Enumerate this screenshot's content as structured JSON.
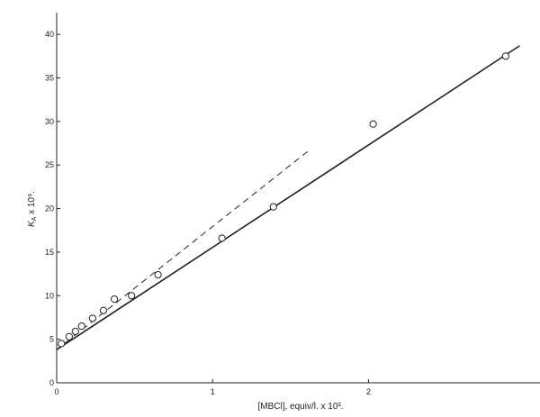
{
  "chart_data": {
    "type": "scatter",
    "x_tick_labels": [
      "0",
      "1",
      "2"
    ],
    "y_tick_labels": [
      "0",
      "5",
      "10",
      "15",
      "20",
      "25",
      "30",
      "35",
      "40"
    ],
    "x_ticks": [
      0,
      1,
      2
    ],
    "y_ticks": [
      0,
      5,
      10,
      15,
      20,
      25,
      30,
      35,
      40
    ],
    "xlim": [
      0,
      3.1
    ],
    "ylim": [
      0,
      42.5
    ],
    "xlabel": "[MBCl], equiv/l. x 10³.",
    "ylabel": "K_A x 10⁹.",
    "ylabel_main": "K",
    "ylabel_sub": "A",
    "ylabel_rest": " x 10⁹.",
    "grid": false,
    "points": [
      {
        "x": 0.03,
        "y": 4.5
      },
      {
        "x": 0.08,
        "y": 5.3
      },
      {
        "x": 0.12,
        "y": 5.9
      },
      {
        "x": 0.16,
        "y": 6.5
      },
      {
        "x": 0.23,
        "y": 7.4
      },
      {
        "x": 0.3,
        "y": 8.3
      },
      {
        "x": 0.37,
        "y": 9.6
      },
      {
        "x": 0.48,
        "y": 10.0
      },
      {
        "x": 0.65,
        "y": 12.4
      },
      {
        "x": 1.06,
        "y": 16.6
      },
      {
        "x": 1.39,
        "y": 20.2
      },
      {
        "x": 2.03,
        "y": 29.7
      },
      {
        "x": 2.88,
        "y": 37.5
      }
    ],
    "fit_line": {
      "x": [
        0.0,
        2.97
      ],
      "y": [
        3.8,
        38.7
      ]
    },
    "dashed_line": {
      "x": [
        0.0,
        1.62
      ],
      "y": [
        3.8,
        26.7
      ]
    }
  }
}
